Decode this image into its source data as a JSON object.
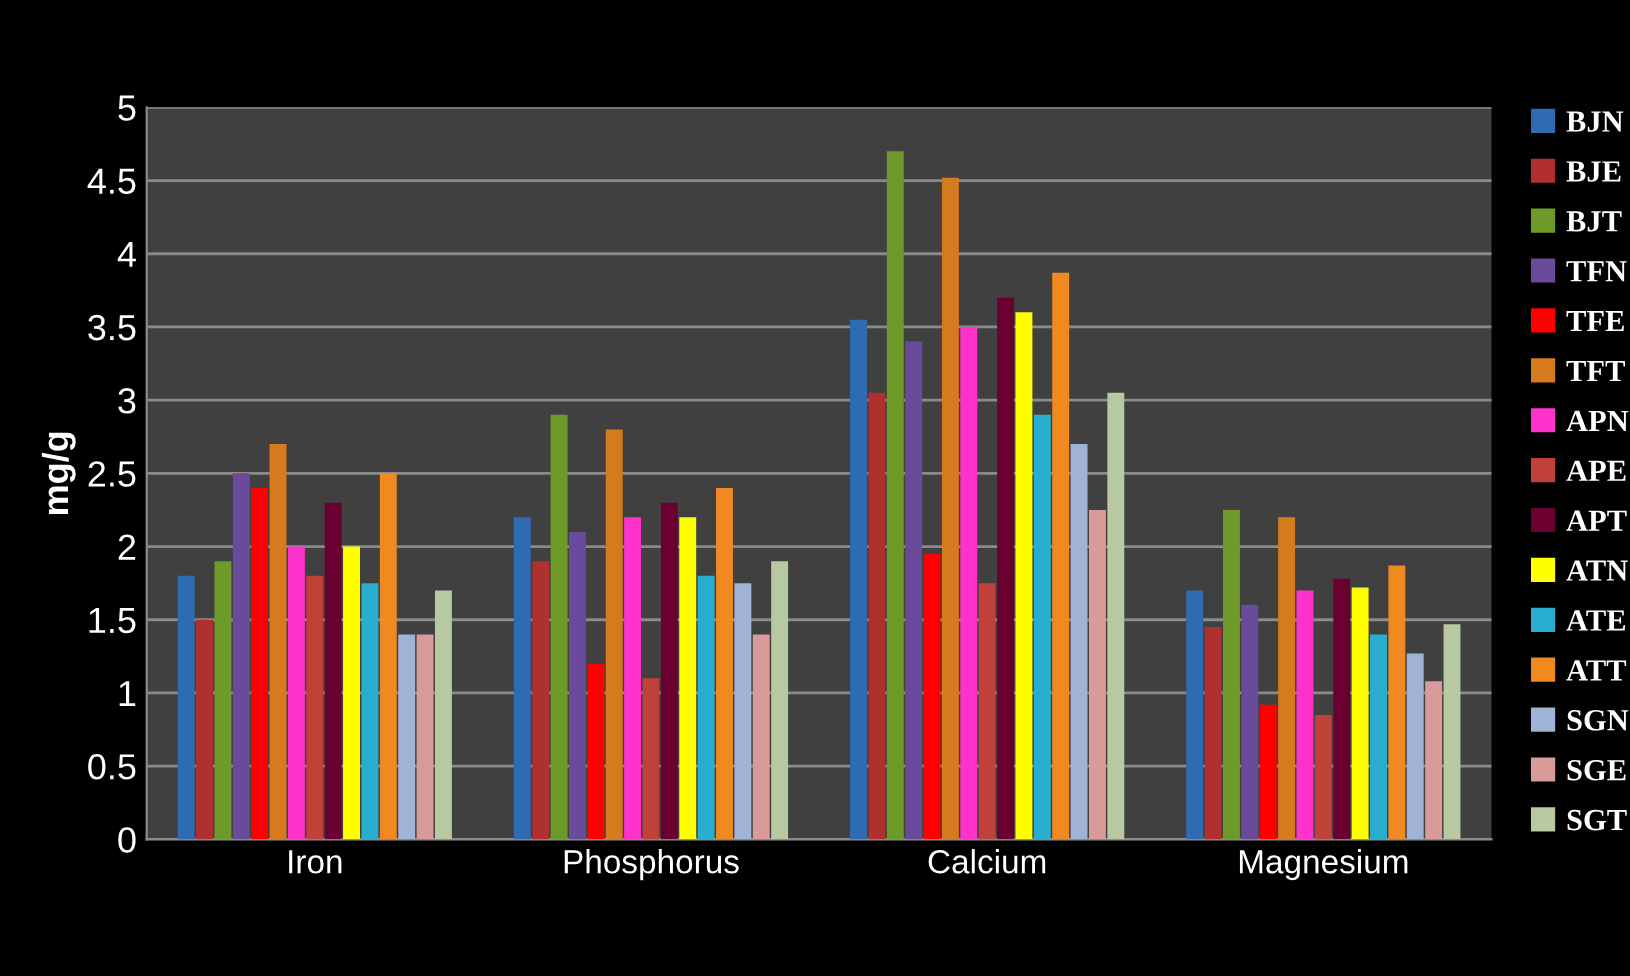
{
  "chart_data": {
    "type": "bar",
    "ylabel": "mg/g",
    "categories": [
      "Iron",
      "Phosphorus",
      "Calcium",
      "Magnesium"
    ],
    "series": [
      {
        "name": "BJN",
        "color": "#2e6bb0",
        "values": [
          1.8,
          2.2,
          3.55,
          1.7
        ]
      },
      {
        "name": "BJE",
        "color": "#b03030",
        "values": [
          1.5,
          1.9,
          3.05,
          1.45
        ]
      },
      {
        "name": "BJT",
        "color": "#6e9a2a",
        "values": [
          1.9,
          2.9,
          4.7,
          2.25
        ]
      },
      {
        "name": "TFN",
        "color": "#6a4a9a",
        "values": [
          2.5,
          2.1,
          3.4,
          1.6
        ]
      },
      {
        "name": "TFE",
        "color": "#ff0000",
        "values": [
          2.4,
          1.2,
          1.95,
          0.92
        ]
      },
      {
        "name": "TFT",
        "color": "#d67a1e",
        "values": [
          2.7,
          2.8,
          4.52,
          2.2
        ]
      },
      {
        "name": "APN",
        "color": "#ff33cc",
        "values": [
          2.0,
          2.2,
          3.5,
          1.7
        ]
      },
      {
        "name": "APE",
        "color": "#c0403a",
        "values": [
          1.8,
          1.1,
          1.75,
          0.85
        ]
      },
      {
        "name": "APT",
        "color": "#6a0030",
        "values": [
          2.3,
          2.3,
          3.7,
          1.78
        ]
      },
      {
        "name": "ATN",
        "color": "#ffff00",
        "values": [
          2.0,
          2.2,
          3.6,
          1.72
        ]
      },
      {
        "name": "ATE",
        "color": "#2aaed0",
        "values": [
          1.75,
          1.8,
          2.9,
          1.4
        ]
      },
      {
        "name": "ATT",
        "color": "#f08a20",
        "values": [
          2.5,
          2.4,
          3.87,
          1.87
        ]
      },
      {
        "name": "SGN",
        "color": "#9fb3d6",
        "values": [
          1.4,
          1.75,
          2.7,
          1.27
        ]
      },
      {
        "name": "SGE",
        "color": "#d89a9a",
        "values": [
          1.4,
          1.4,
          2.25,
          1.08
        ]
      },
      {
        "name": "SGT",
        "color": "#b8c8a0",
        "values": [
          1.7,
          1.9,
          3.05,
          1.47
        ]
      }
    ],
    "ylim": [
      0,
      5
    ],
    "yticks": [
      0,
      0.5,
      1,
      1.5,
      2,
      2.5,
      3,
      3.5,
      4,
      4.5,
      5
    ],
    "grid": "y",
    "legend": "right"
  }
}
